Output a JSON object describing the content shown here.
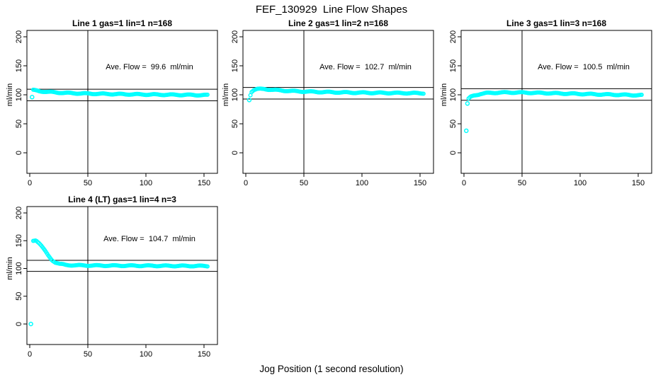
{
  "page_title": "FEF_130929  Line Flow Shapes",
  "x_axis_label": "Jog Position (1 second resolution)",
  "colors": {
    "point": "#00ffff",
    "axis": "#000000",
    "background": "#ffffff"
  },
  "chart_data": [
    {
      "type": "scatter",
      "title": "Line 1 gas=1 lin=1 n=168",
      "annotation": "Ave. Flow =  99.6  ml/min",
      "ave_flow_ml_min": 99.6,
      "n_points": 168,
      "ylabel": "ml/min",
      "xlim": [
        0,
        157
      ],
      "ylim": [
        0,
        200
      ],
      "x_ticks": [
        0,
        50,
        100,
        150
      ],
      "y_ticks": [
        0,
        50,
        100,
        150,
        200
      ],
      "ref_lines_y": [
        109.6,
        89.6
      ],
      "vline_x": 50,
      "outlier_points": [
        [
          2,
          96
        ]
      ],
      "curve_keypoints": [
        [
          3,
          108
        ],
        [
          8,
          106.5
        ],
        [
          15,
          105
        ],
        [
          30,
          103.2
        ],
        [
          50,
          102
        ],
        [
          80,
          101
        ],
        [
          110,
          100.3
        ],
        [
          153,
          99.4
        ]
      ]
    },
    {
      "type": "scatter",
      "title": "Line 2 gas=1 lin=2 n=168",
      "annotation": "Ave. Flow =  102.7  ml/min",
      "ave_flow_ml_min": 102.7,
      "n_points": 168,
      "ylabel": "ml/min",
      "xlim": [
        0,
        157
      ],
      "ylim": [
        0,
        200
      ],
      "x_ticks": [
        0,
        50,
        100,
        150
      ],
      "y_ticks": [
        0,
        50,
        100,
        150,
        200
      ],
      "ref_lines_y": [
        112.7,
        92.7
      ],
      "vline_x": 50,
      "outlier_points": [
        [
          3,
          91
        ]
      ],
      "curve_keypoints": [
        [
          4,
          100
        ],
        [
          5,
          105.5
        ],
        [
          7,
          108.5
        ],
        [
          10,
          109.8
        ],
        [
          16,
          110
        ],
        [
          25,
          108.2
        ],
        [
          40,
          106.3
        ],
        [
          60,
          105
        ],
        [
          90,
          103.8
        ],
        [
          120,
          103.2
        ],
        [
          153,
          102.7
        ]
      ]
    },
    {
      "type": "scatter",
      "title": "Line 3 gas=1 lin=3 n=168",
      "annotation": "Ave. Flow =  100.5  ml/min",
      "ave_flow_ml_min": 100.5,
      "n_points": 168,
      "ylabel": "ml/min",
      "xlim": [
        0,
        157
      ],
      "ylim": [
        0,
        200
      ],
      "x_ticks": [
        0,
        50,
        100,
        150
      ],
      "y_ticks": [
        0,
        50,
        100,
        150,
        200
      ],
      "ref_lines_y": [
        110.5,
        90.5
      ],
      "vline_x": 50,
      "outlier_points": [
        [
          2,
          38
        ],
        [
          3,
          85
        ]
      ],
      "curve_keypoints": [
        [
          4,
          93
        ],
        [
          6,
          96.5
        ],
        [
          9,
          99
        ],
        [
          14,
          101.5
        ],
        [
          20,
          103
        ],
        [
          30,
          103.8
        ],
        [
          45,
          104
        ],
        [
          65,
          103.2
        ],
        [
          90,
          102
        ],
        [
          120,
          100.6
        ],
        [
          153,
          99.2
        ]
      ]
    },
    {
      "type": "scatter",
      "title": "Line 4 (LT) gas=1 lin=4 n=3",
      "annotation": "Ave. Flow =  104.7  ml/min",
      "ave_flow_ml_min": 104.7,
      "n_points": 3,
      "ylabel": "ml/min",
      "xlim": [
        0,
        157
      ],
      "ylim": [
        0,
        200
      ],
      "x_ticks": [
        0,
        50,
        100,
        150
      ],
      "y_ticks": [
        0,
        50,
        100,
        150,
        200
      ],
      "ref_lines_y": [
        114.7,
        94.7
      ],
      "vline_x": 50,
      "outlier_points": [
        [
          1,
          0
        ]
      ],
      "curve_keypoints": [
        [
          3,
          150
        ],
        [
          5,
          151
        ],
        [
          6,
          150
        ],
        [
          8,
          146
        ],
        [
          10,
          141
        ],
        [
          13,
          132
        ],
        [
          16,
          123
        ],
        [
          19,
          115.5
        ],
        [
          22,
          111
        ],
        [
          26,
          108
        ],
        [
          31,
          106.3
        ],
        [
          40,
          105.6
        ],
        [
          60,
          105.2
        ],
        [
          100,
          104.9
        ],
        [
          153,
          104.4
        ]
      ]
    }
  ]
}
